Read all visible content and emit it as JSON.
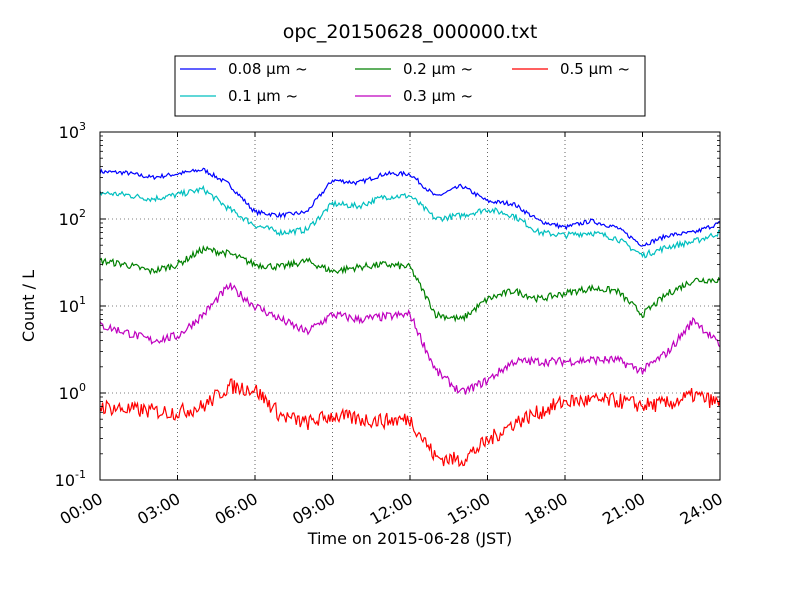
{
  "chart_data": {
    "type": "line",
    "title": "opc_20150628_000000.txt",
    "xlabel": "Time on 2015-06-28 (JST)",
    "ylabel": "Count / L",
    "yscale": "log",
    "ylim": [
      0.1,
      1000
    ],
    "xlim": [
      "00:00",
      "24:00"
    ],
    "x_ticks": [
      "00:00",
      "03:00",
      "06:00",
      "09:00",
      "12:00",
      "15:00",
      "18:00",
      "21:00",
      "24:00"
    ],
    "y_ticks": [
      {
        "base": "10",
        "exp": "-1"
      },
      {
        "base": "10",
        "exp": "0"
      },
      {
        "base": "10",
        "exp": "1"
      },
      {
        "base": "10",
        "exp": "2"
      },
      {
        "base": "10",
        "exp": "3"
      }
    ],
    "grid": true,
    "legend_position": "top-center",
    "x_hours": [
      0,
      1,
      2,
      3,
      4,
      5,
      6,
      7,
      8,
      9,
      10,
      11,
      12,
      13,
      14,
      15,
      16,
      17,
      18,
      19,
      20,
      21,
      22,
      23,
      24
    ],
    "series": [
      {
        "name": "0.08 μm ~",
        "color": "#0000ff",
        "values": [
          350,
          340,
          300,
          330,
          370,
          250,
          120,
          110,
          120,
          280,
          260,
          330,
          330,
          180,
          240,
          160,
          150,
          95,
          80,
          95,
          80,
          50,
          65,
          70,
          90
        ]
      },
      {
        "name": "0.1 μm ~",
        "color": "#00bfbf",
        "values": [
          200,
          190,
          170,
          190,
          220,
          130,
          85,
          70,
          75,
          150,
          140,
          180,
          185,
          100,
          110,
          130,
          110,
          70,
          65,
          70,
          60,
          38,
          48,
          55,
          70
        ]
      },
      {
        "name": "0.2 μm ~",
        "color": "#008000",
        "values": [
          33,
          30,
          25,
          30,
          45,
          40,
          30,
          28,
          33,
          25,
          28,
          30,
          28,
          8,
          7,
          12,
          15,
          12,
          14,
          16,
          15,
          8,
          14,
          20,
          20
        ]
      },
      {
        "name": "0.3 μm ~",
        "color": "#bf00bf",
        "values": [
          6,
          5,
          4,
          4.5,
          8,
          17,
          10,
          7,
          5,
          8,
          7,
          7.5,
          8,
          1.8,
          1.0,
          1.4,
          2.3,
          2.3,
          2.3,
          2.4,
          2.4,
          1.8,
          3.0,
          7.0,
          3.5
        ]
      },
      {
        "name": "0.5 μm ~",
        "color": "#ff0000",
        "values": [
          0.7,
          0.65,
          0.62,
          0.6,
          0.7,
          1.2,
          1.1,
          0.55,
          0.45,
          0.55,
          0.5,
          0.48,
          0.5,
          0.18,
          0.17,
          0.28,
          0.45,
          0.6,
          0.8,
          0.82,
          0.82,
          0.72,
          0.75,
          0.95,
          0.75
        ]
      }
    ]
  }
}
